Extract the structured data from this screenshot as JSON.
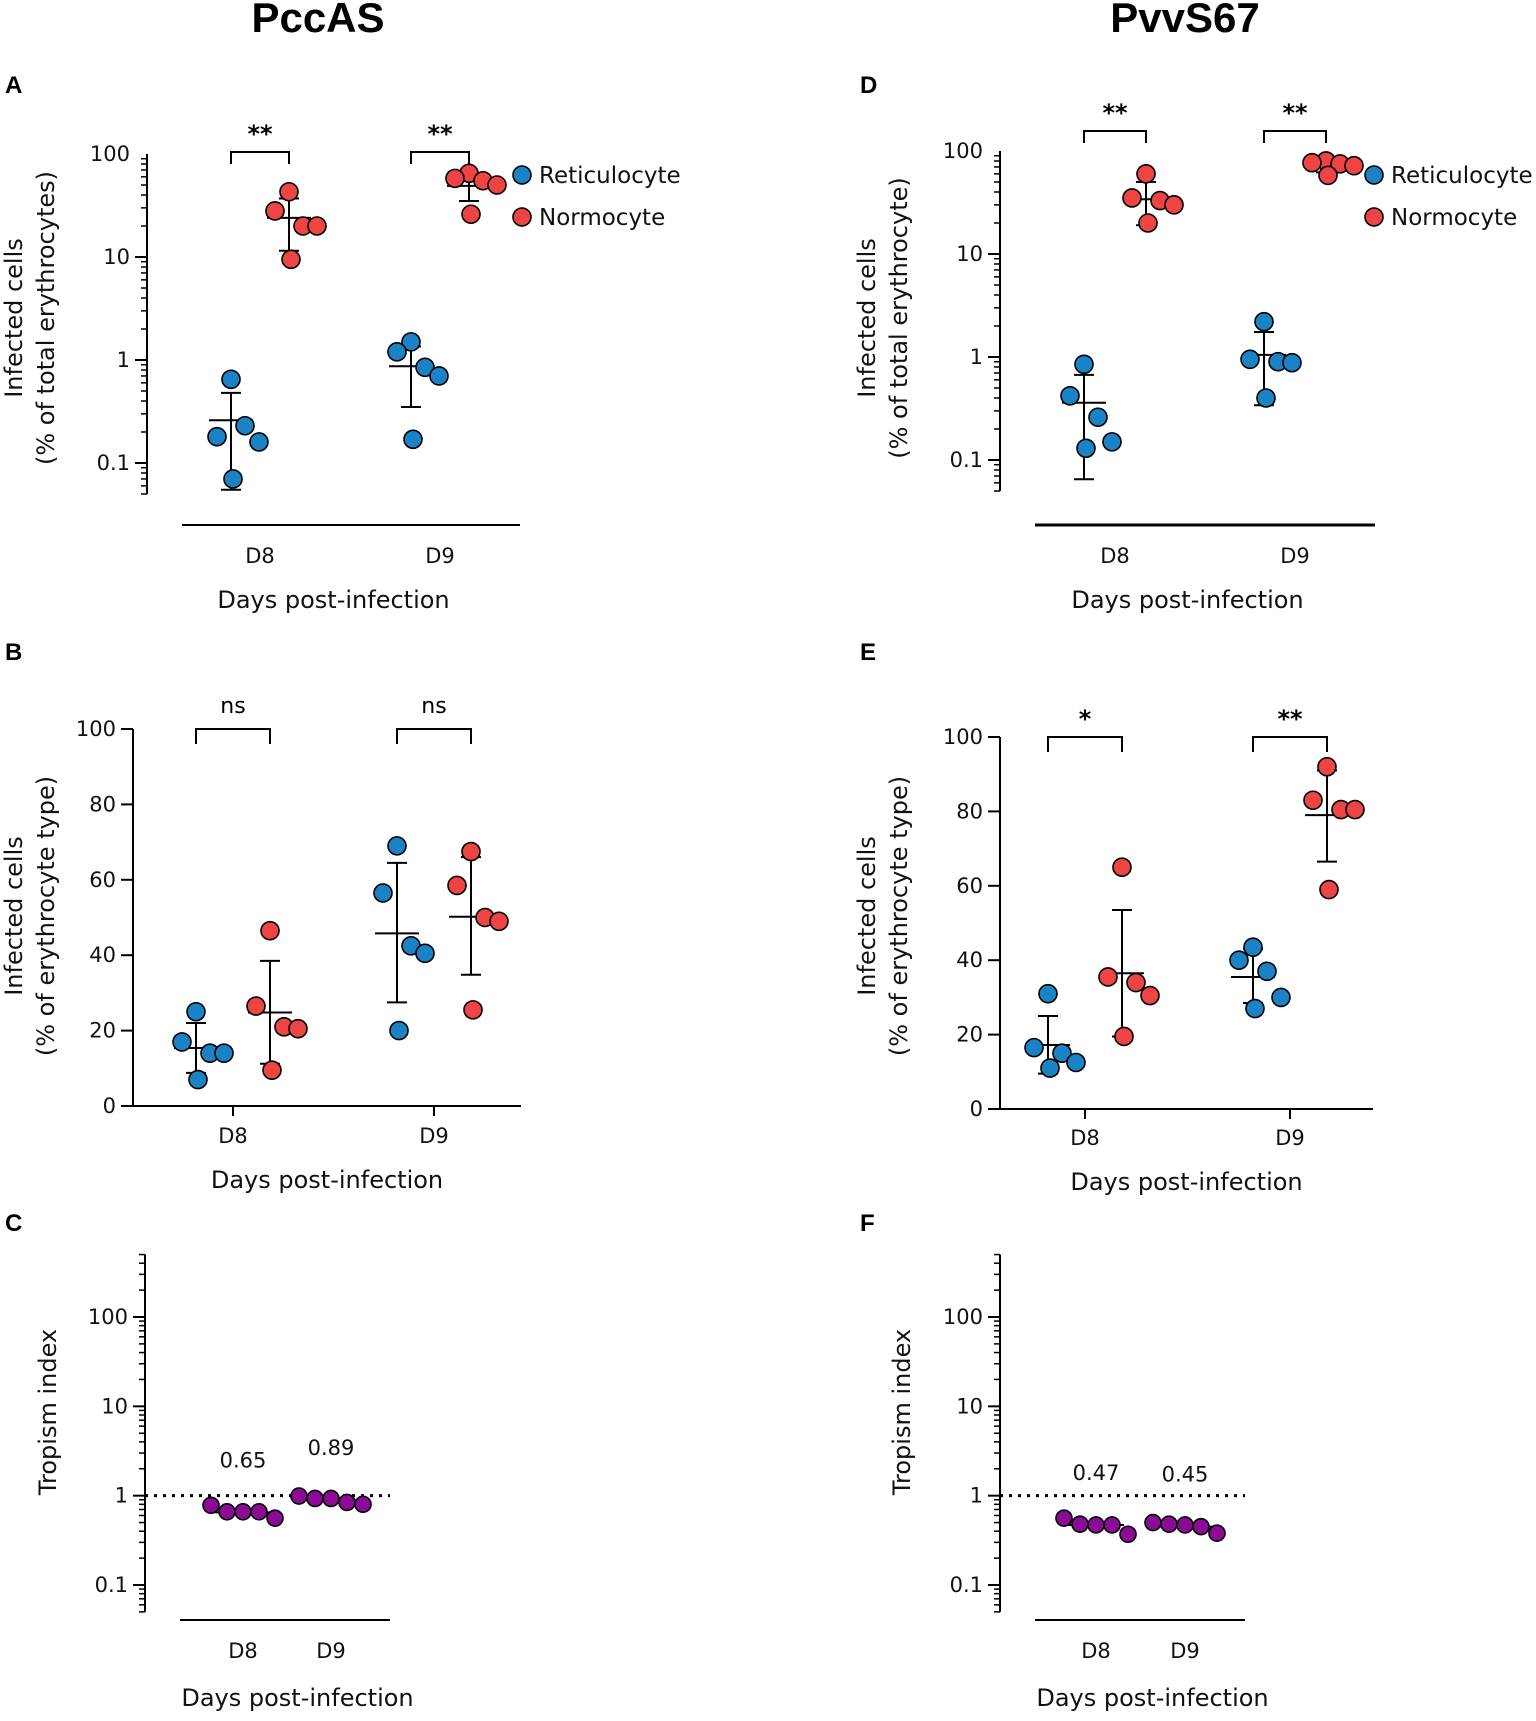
{
  "titles": {
    "left": "PccAS",
    "right": "PvvS67"
  },
  "colors": {
    "reticulocyte": "#1a83c6",
    "normocyte": "#ee4444",
    "tropism": "#8b0a96",
    "axis": "#000000"
  },
  "chart_data": [
    {
      "panel": "A",
      "type": "scatter",
      "scale": "log",
      "ylabel_line1": "Infected cells",
      "ylabel_line2": "(% of total erythrocytes)",
      "xlabel": "Days post-infection",
      "ylim": [
        0.05,
        100
      ],
      "yticks": [
        0.1,
        1,
        10,
        100
      ],
      "ytick_labels": [
        "0.1",
        "1",
        "10",
        "100"
      ],
      "categories": [
        "D8",
        "D9"
      ],
      "legend": [
        "Reticulocyte",
        "Normocyte"
      ],
      "series": [
        {
          "name": "Reticulocyte",
          "color_key": "reticulocyte",
          "groups": [
            {
              "category": "D8",
              "points": [
                0.65,
                0.18,
                0.23,
                0.16,
                0.07
              ],
              "mean": 0.26,
              "err": [
                0.055,
                0.48
              ]
            },
            {
              "category": "D9",
              "points": [
                1.5,
                1.2,
                0.85,
                0.7,
                0.17
              ],
              "mean": 0.87,
              "err": [
                0.35,
                1.35
              ]
            }
          ]
        },
        {
          "name": "Normocyte",
          "color_key": "normocyte",
          "groups": [
            {
              "category": "D8",
              "points": [
                43,
                28,
                20,
                20,
                9.5
              ],
              "mean": 24,
              "err": [
                11.5,
                37
              ]
            },
            {
              "category": "D9",
              "points": [
                65,
                58,
                55,
                50,
                26
              ],
              "mean": 49,
              "err": [
                35,
                62
              ]
            }
          ]
        }
      ],
      "comparisons": [
        {
          "category": "D8",
          "label": "**"
        },
        {
          "category": "D9",
          "label": "**"
        }
      ]
    },
    {
      "panel": "B",
      "type": "scatter",
      "scale": "linear",
      "ylabel_line1": "Infected cells",
      "ylabel_line2": "(% of erythrocyte type)",
      "xlabel": "Days post-infection",
      "ylim": [
        0,
        100
      ],
      "yticks": [
        0,
        20,
        40,
        60,
        80,
        100
      ],
      "ytick_labels": [
        "0",
        "20",
        "40",
        "60",
        "80",
        "100"
      ],
      "categories": [
        "D8",
        "D9"
      ],
      "series": [
        {
          "name": "Reticulocyte",
          "color_key": "reticulocyte",
          "groups": [
            {
              "category": "D8",
              "points": [
                25,
                17,
                14,
                14,
                7
              ],
              "mean": 15.4,
              "err": [
                8.8,
                22
              ]
            },
            {
              "category": "D9",
              "points": [
                69,
                56.5,
                42.5,
                40.5,
                20
              ],
              "mean": 45.8,
              "err": [
                27.5,
                64.5
              ]
            }
          ]
        },
        {
          "name": "Normocyte",
          "color_key": "normocyte",
          "groups": [
            {
              "category": "D8",
              "points": [
                46.5,
                26.5,
                21,
                20.5,
                9.5
              ],
              "mean": 24.8,
              "err": [
                11.2,
                38.5
              ]
            },
            {
              "category": "D9",
              "points": [
                67.5,
                58.5,
                50,
                49,
                25.5
              ],
              "mean": 50.2,
              "err": [
                34.8,
                66
              ]
            }
          ]
        }
      ],
      "comparisons": [
        {
          "category": "D8",
          "label": "ns"
        },
        {
          "category": "D9",
          "label": "ns"
        }
      ]
    },
    {
      "panel": "C",
      "type": "scatter",
      "scale": "log",
      "ylabel_line1": "Tropism index",
      "xlabel": "Days post-infection",
      "ylim": [
        0.05,
        500
      ],
      "yticks": [
        0.1,
        1,
        10,
        100
      ],
      "ytick_labels": [
        "0.1",
        "1",
        "10",
        "100"
      ],
      "categories": [
        "D8",
        "D9"
      ],
      "reference_line": 1,
      "series": [
        {
          "name": "Tropism index",
          "color_key": "tropism",
          "groups": [
            {
              "category": "D8",
              "points": [
                0.78,
                0.66,
                0.66,
                0.66,
                0.56
              ],
              "mean": 0.65,
              "label": "0.65"
            },
            {
              "category": "D9",
              "points": [
                0.99,
                0.93,
                0.93,
                0.84,
                0.8
              ],
              "mean": 0.89,
              "label": "0.89"
            }
          ]
        }
      ]
    },
    {
      "panel": "D",
      "type": "scatter",
      "scale": "log",
      "ylabel_line1": "Infected cells",
      "ylabel_line2": "(% of total erythrocyte)",
      "xlabel": "Days post-infection",
      "ylim": [
        0.05,
        100
      ],
      "yticks": [
        0.1,
        1,
        10,
        100
      ],
      "ytick_labels": [
        "0.1",
        "1",
        "10",
        "100"
      ],
      "categories": [
        "D8",
        "D9"
      ],
      "legend": [
        "Reticulocyte",
        "Normocyte"
      ],
      "series": [
        {
          "name": "Reticulocyte",
          "color_key": "reticulocyte",
          "groups": [
            {
              "category": "D8",
              "points": [
                0.85,
                0.42,
                0.26,
                0.15,
                0.13
              ],
              "mean": 0.36,
              "err": [
                0.065,
                0.67
              ]
            },
            {
              "category": "D9",
              "points": [
                2.2,
                0.95,
                0.9,
                0.88,
                0.4
              ],
              "mean": 1.05,
              "err": [
                0.34,
                1.75
              ]
            }
          ]
        },
        {
          "name": "Normocyte",
          "color_key": "normocyte",
          "groups": [
            {
              "category": "D8",
              "points": [
                60,
                35,
                33,
                30,
                20
              ],
              "mean": 34,
              "err": [
                19,
                50
              ]
            },
            {
              "category": "D9",
              "points": [
                80,
                77,
                75,
                72,
                58
              ],
              "mean": 72,
              "err": [
                62,
                80
              ]
            }
          ]
        }
      ],
      "comparisons": [
        {
          "category": "D8",
          "label": "**"
        },
        {
          "category": "D9",
          "label": "**"
        }
      ]
    },
    {
      "panel": "E",
      "type": "scatter",
      "scale": "linear",
      "ylabel_line1": "Infected cells",
      "ylabel_line2": "(% of erythrocyte type)",
      "xlabel": "Days post-infection",
      "ylim": [
        0,
        100
      ],
      "yticks": [
        0,
        20,
        40,
        60,
        80,
        100
      ],
      "ytick_labels": [
        "0",
        "20",
        "40",
        "60",
        "80",
        "100"
      ],
      "categories": [
        "D8",
        "D9"
      ],
      "series": [
        {
          "name": "Reticulocyte",
          "color_key": "reticulocyte",
          "groups": [
            {
              "category": "D8",
              "points": [
                31,
                16.5,
                15,
                12.5,
                11
              ],
              "mean": 17.2,
              "err": [
                9.5,
                25
              ]
            },
            {
              "category": "D9",
              "points": [
                43.5,
                40,
                37,
                30,
                27
              ],
              "mean": 35.5,
              "err": [
                28.5,
                43
              ]
            }
          ]
        },
        {
          "name": "Normocyte",
          "color_key": "normocyte",
          "groups": [
            {
              "category": "D8",
              "points": [
                65,
                35.5,
                34,
                30.5,
                19.5
              ],
              "mean": 36.5,
              "err": [
                19.5,
                53.5
              ]
            },
            {
              "category": "D9",
              "points": [
                92,
                83,
                80.5,
                80.5,
                59
              ],
              "mean": 79,
              "err": [
                66.5,
                91
              ]
            }
          ]
        }
      ],
      "comparisons": [
        {
          "category": "D8",
          "label": "*"
        },
        {
          "category": "D9",
          "label": "**"
        }
      ]
    },
    {
      "panel": "F",
      "type": "scatter",
      "scale": "log",
      "ylabel_line1": "Tropism index",
      "xlabel": "Days post-infection",
      "ylim": [
        0.05,
        500
      ],
      "yticks": [
        0.1,
        1,
        10,
        100
      ],
      "ytick_labels": [
        "0.1",
        "1",
        "10",
        "100"
      ],
      "categories": [
        "D8",
        "D9"
      ],
      "reference_line": 1,
      "series": [
        {
          "name": "Tropism index",
          "color_key": "tropism",
          "groups": [
            {
              "category": "D8",
              "points": [
                0.56,
                0.48,
                0.47,
                0.47,
                0.37
              ],
              "mean": 0.47,
              "label": "0.47"
            },
            {
              "category": "D9",
              "points": [
                0.5,
                0.48,
                0.47,
                0.45,
                0.38
              ],
              "mean": 0.45,
              "label": "0.45"
            }
          ]
        }
      ]
    }
  ]
}
